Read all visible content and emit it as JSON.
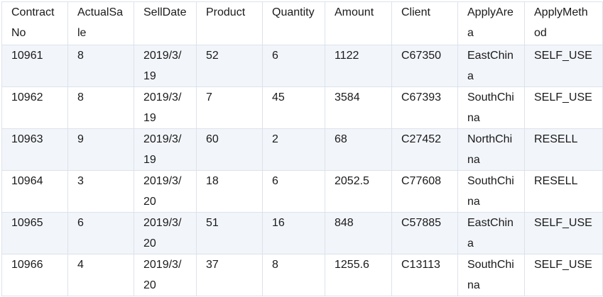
{
  "grid": {
    "columns": [
      "ContractNo",
      "ActualSale",
      "SellDate",
      "Product",
      "Quantity",
      "Amount",
      "Client",
      "ApplyArea",
      "ApplyMethod"
    ],
    "rows": [
      [
        "10961",
        "8",
        "2019/3/19",
        "52",
        "6",
        "1122",
        "C67350",
        "EastChina",
        "SELF_USE"
      ],
      [
        "10962",
        "8",
        "2019/3/19",
        "7",
        "45",
        "3584",
        "C67393",
        "SouthChina",
        "SELF_USE"
      ],
      [
        "10963",
        "9",
        "2019/3/19",
        "60",
        "2",
        "68",
        "C27452",
        "NorthChina",
        "RESELL"
      ],
      [
        "10964",
        "3",
        "2019/3/20",
        "18",
        "6",
        "2052.5",
        "C77608",
        "SouthChina",
        "RESELL"
      ],
      [
        "10965",
        "6",
        "2019/3/20",
        "51",
        "16",
        "848",
        "C57885",
        "EastChina",
        "SELF_USE"
      ],
      [
        "10966",
        "4",
        "2019/3/20",
        "37",
        "8",
        "1255.6",
        "C13113",
        "SouthChina",
        "SELF_USE"
      ]
    ],
    "colors": {
      "border": "#dde2eb",
      "row_stripe": "#f2f5fa",
      "header_background": "#ffffff",
      "text": "#1a1a1a"
    }
  }
}
